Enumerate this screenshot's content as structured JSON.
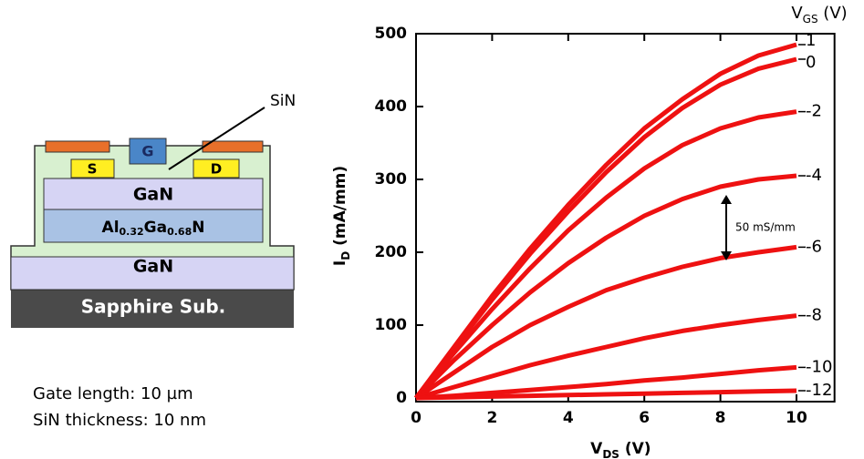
{
  "chart_data": {
    "type": "line",
    "x": [
      0,
      1,
      2,
      3,
      4,
      5,
      6,
      7,
      8,
      9,
      10
    ],
    "series": [
      {
        "name": "1",
        "color": "#ee1111",
        "values": [
          0,
          70,
          140,
          205,
          265,
          320,
          370,
          410,
          445,
          470,
          485
        ]
      },
      {
        "name": "0",
        "color": "#ee1111",
        "values": [
          0,
          68,
          135,
          198,
          256,
          310,
          358,
          398,
          430,
          452,
          465
        ]
      },
      {
        "name": "-2",
        "color": "#ee1111",
        "values": [
          0,
          62,
          122,
          178,
          230,
          275,
          315,
          347,
          370,
          385,
          393
        ]
      },
      {
        "name": "-4",
        "color": "#ee1111",
        "values": [
          0,
          52,
          100,
          145,
          185,
          220,
          250,
          273,
          290,
          300,
          305
        ]
      },
      {
        "name": "-6",
        "color": "#ee1111",
        "values": [
          0,
          35,
          70,
          100,
          125,
          148,
          165,
          180,
          192,
          200,
          207
        ]
      },
      {
        "name": "-8",
        "color": "#ee1111",
        "values": [
          0,
          15,
          30,
          45,
          58,
          70,
          82,
          92,
          100,
          107,
          113
        ]
      },
      {
        "name": "-10",
        "color": "#ee1111",
        "values": [
          0,
          3,
          7,
          11,
          15,
          19,
          24,
          28,
          33,
          38,
          42
        ]
      },
      {
        "name": "-12",
        "color": "#ee1111",
        "values": [
          0,
          1,
          2,
          3,
          4,
          5,
          6,
          7,
          8,
          9,
          10
        ]
      }
    ],
    "xlim": [
      0,
      11
    ],
    "ylim": [
      0,
      500
    ],
    "xticks": [
      0,
      2,
      4,
      6,
      8,
      10
    ],
    "yticks": [
      0,
      100,
      200,
      300,
      400,
      500
    ],
    "x_label": [
      "V",
      "DS",
      " (V)"
    ],
    "y_label": [
      "I",
      "D",
      " (mA/mm)"
    ],
    "legend_title": [
      "V",
      "GS",
      " (V)"
    ],
    "annotation": "50 mS/mm"
  },
  "device": {
    "sin_label": "SiN",
    "gate": "G",
    "source": "S",
    "drain": "D",
    "gan_top": "GaN",
    "algan": [
      "Al",
      "0.32",
      "Ga",
      "0.68",
      "N"
    ],
    "gan_bottom": "GaN",
    "substrate": "Sapphire Sub.",
    "notes": [
      "Gate length: 10 µm",
      "SiN thickness: 10 nm"
    ]
  }
}
